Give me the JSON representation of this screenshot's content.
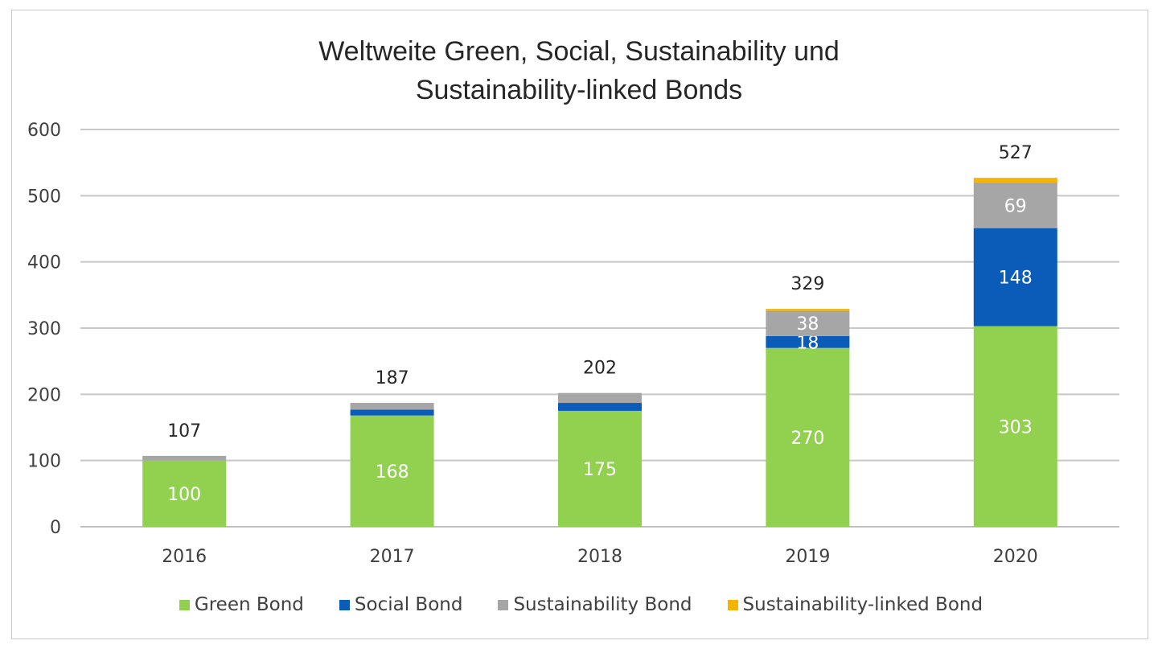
{
  "chart_data": {
    "type": "bar",
    "stacked": true,
    "title": [
      "Weltweite Green, Social, Sustainability und",
      "Sustainability-linked Bonds"
    ],
    "categories": [
      "2016",
      "2017",
      "2018",
      "2019",
      "2020"
    ],
    "ylim": [
      0,
      600
    ],
    "yticks": [
      0,
      100,
      200,
      300,
      400,
      500,
      600
    ],
    "grid": true,
    "legend_position": "bottom",
    "series": [
      {
        "name": "Green Bond",
        "color": "#92d050",
        "values": [
          100,
          168,
          175,
          270,
          303
        ],
        "labels": [
          "100",
          "168",
          "175",
          "270",
          "303"
        ]
      },
      {
        "name": "Social Bond",
        "color": "#0a5cb8",
        "values": [
          0,
          9,
          12,
          18,
          148
        ],
        "labels": [
          "",
          "",
          "",
          "18",
          "148"
        ]
      },
      {
        "name": "Sustainability Bond",
        "color": "#a6a6a6",
        "values": [
          7,
          10,
          15,
          38,
          69
        ],
        "labels": [
          "",
          "",
          "",
          "38",
          "69"
        ]
      },
      {
        "name": "Sustainability-linked Bond",
        "color": "#f5b400",
        "values": [
          0,
          0,
          0,
          3,
          7
        ],
        "labels": [
          "",
          "",
          "",
          "",
          ""
        ]
      }
    ],
    "totals": [
      "107",
      "187",
      "202",
      "329",
      "527"
    ]
  }
}
